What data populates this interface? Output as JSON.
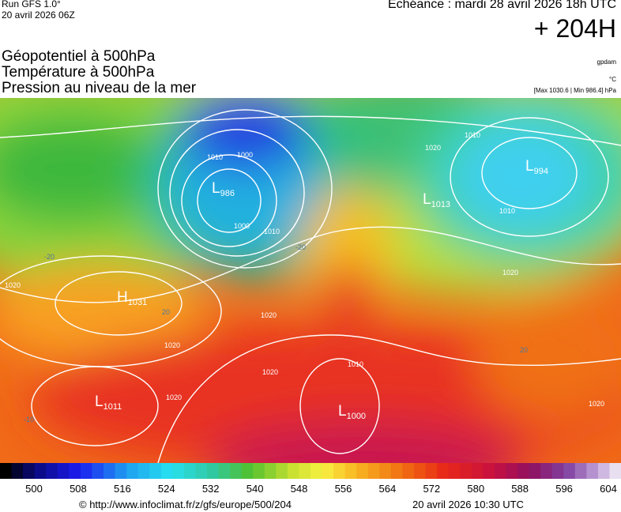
{
  "header": {
    "run": "Run GFS 1.0°",
    "run_date": "20 avril 2026 06Z",
    "valid": "Echéance : mardi 28 avril 2026 18h UTC",
    "lead": "+ 204H"
  },
  "fields": [
    "Géopotentiel à 500hPa",
    "Température à 500hPa",
    "Pression au niveau de la mer"
  ],
  "units": {
    "geopotential": "gpdam",
    "temperature": "°C",
    "pressure": "[Max 1030.6 | Min 986.4] hPa"
  },
  "centers": [
    {
      "letter": "L",
      "value": "986"
    },
    {
      "letter": "L",
      "value": "994"
    },
    {
      "letter": "L",
      "value": "1013"
    },
    {
      "letter": "H",
      "value": "1031"
    },
    {
      "letter": "L",
      "value": "1011"
    },
    {
      "letter": "L",
      "value": "1000"
    }
  ],
  "contour_labels": [
    "1010",
    "1000",
    "1000",
    "1010",
    "1020",
    "1010",
    "1020",
    "1020",
    "1020",
    "1020",
    "1020",
    "1010",
    "1020",
    "1010",
    "1020",
    "-20",
    "-20",
    "20",
    "20",
    "-10"
  ],
  "colorbar": {
    "labels": [
      500,
      508,
      516,
      524,
      532,
      540,
      548,
      556,
      564,
      572,
      580,
      588,
      596,
      604
    ]
  },
  "footer": {
    "url": "© http://www.infoclimat.fr/z/gfs/europe/500/204",
    "generated": "20 avril 2026 10:30 UTC"
  }
}
